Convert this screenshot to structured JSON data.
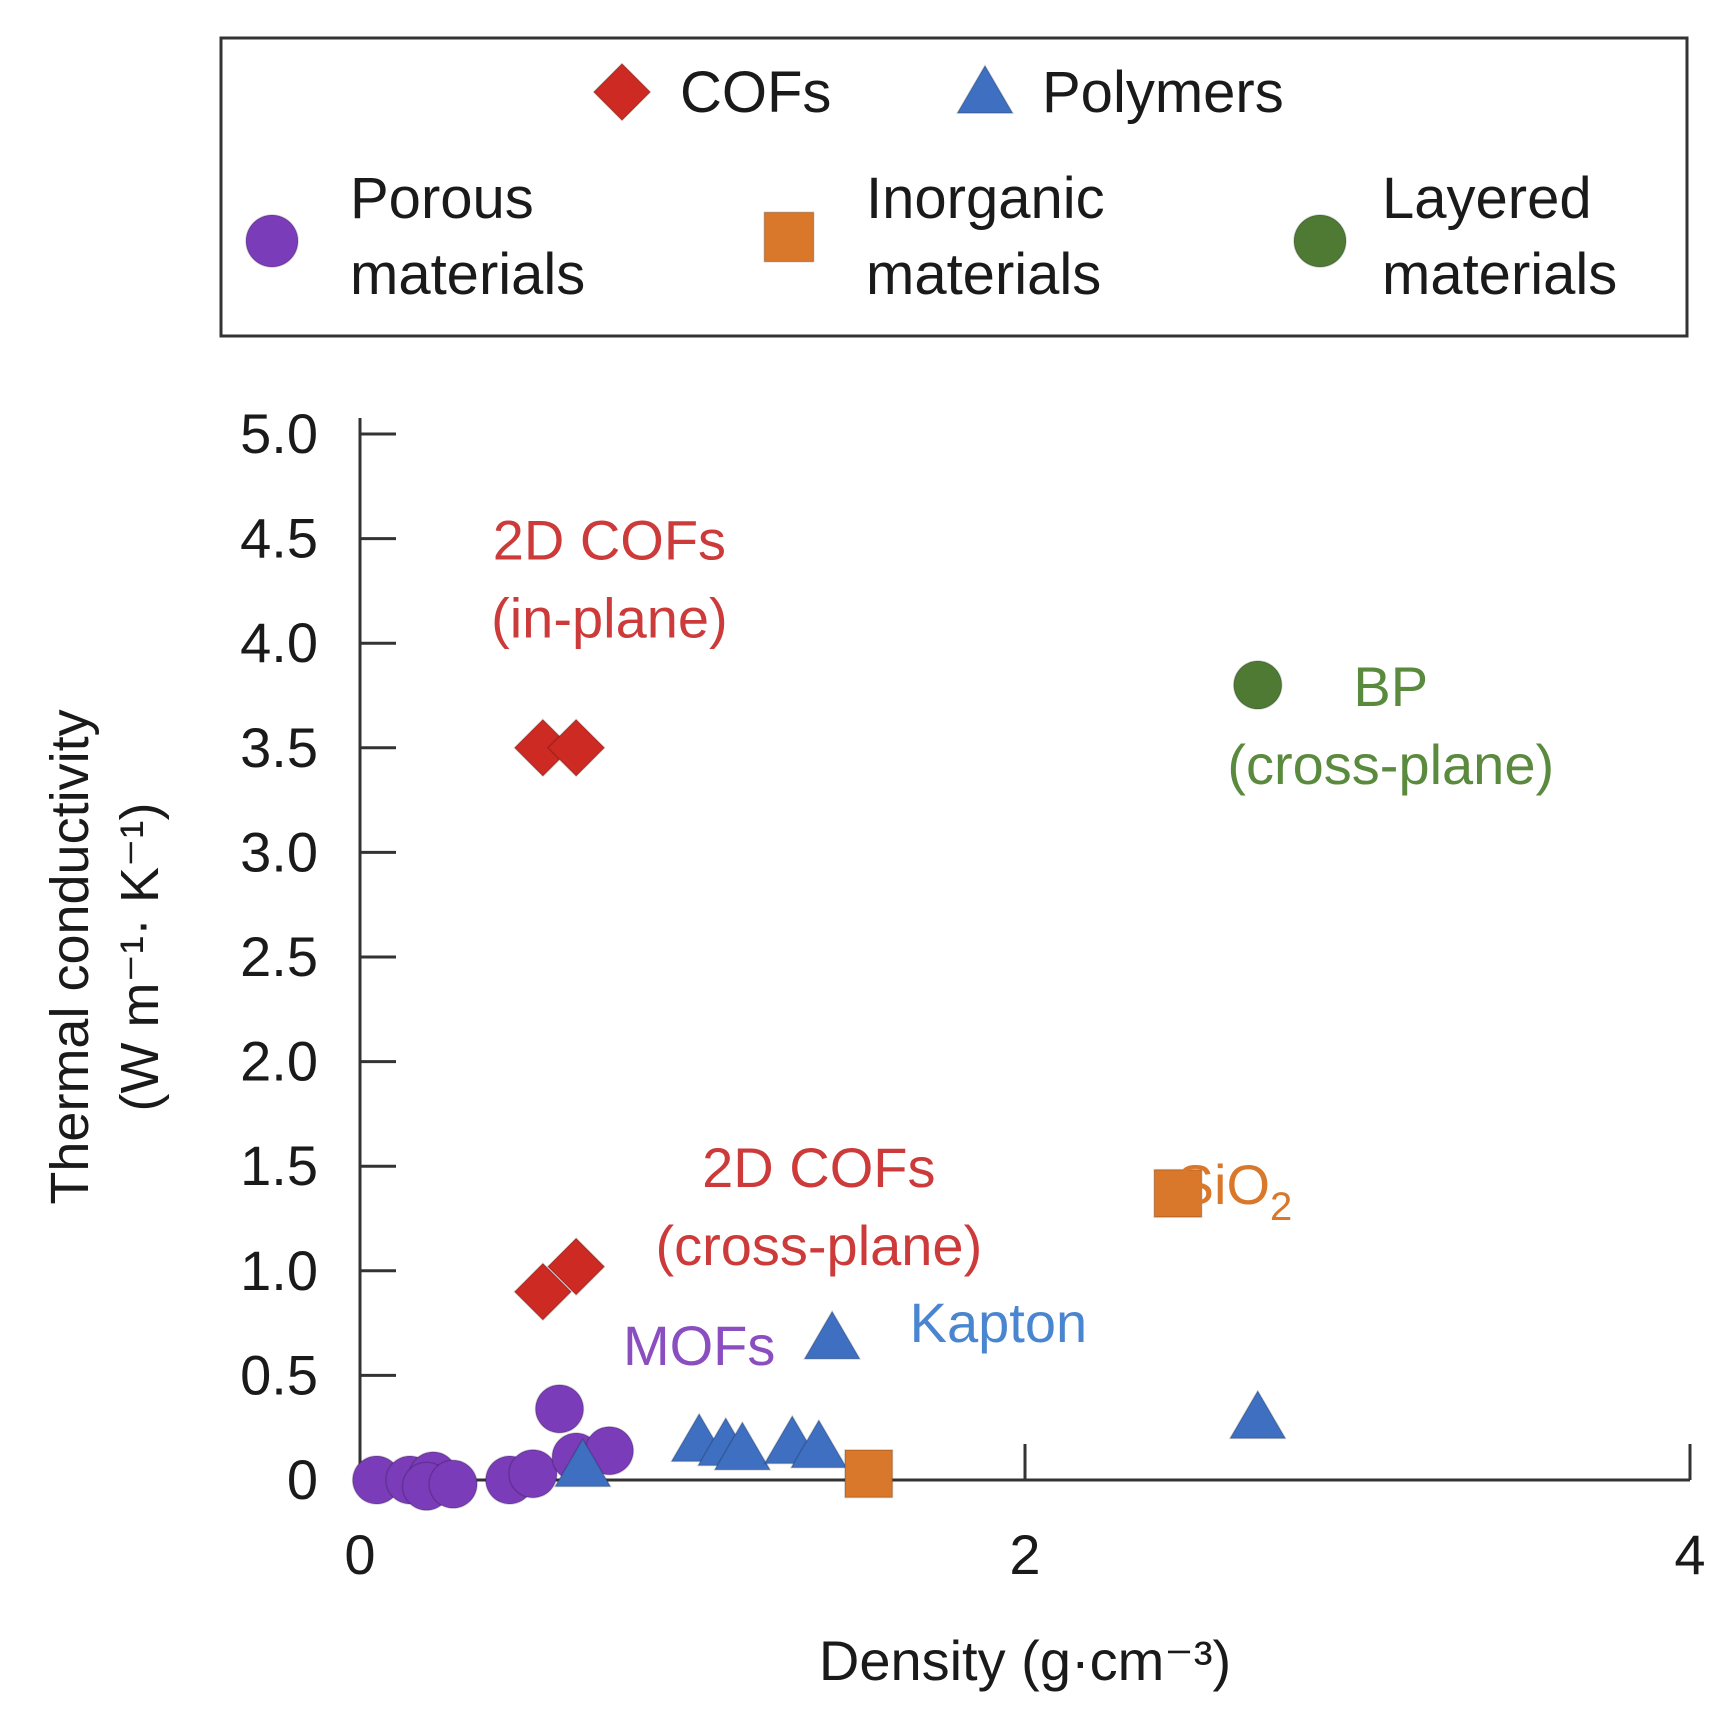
{
  "chart_data": {
    "type": "scatter",
    "xlabel": "Density (g·cm⁻³)",
    "ylabel_line1": "Thermal conductivity",
    "ylabel_line2": "(W m⁻¹· K⁻¹)",
    "xlim": [
      0,
      4
    ],
    "ylim": [
      0,
      5
    ],
    "x_ticks": [
      {
        "value": 0,
        "label": "0"
      },
      {
        "value": 2,
        "label": "2"
      },
      {
        "value": 4,
        "label": "4"
      }
    ],
    "y_ticks": [
      {
        "value": 0,
        "label": "0"
      },
      {
        "value": 0.5,
        "label": "0.5"
      },
      {
        "value": 1.0,
        "label": "1.0"
      },
      {
        "value": 1.5,
        "label": "1.5"
      },
      {
        "value": 2.0,
        "label": "2.0"
      },
      {
        "value": 2.5,
        "label": "2.5"
      },
      {
        "value": 3.0,
        "label": "3.0"
      },
      {
        "value": 3.5,
        "label": "3.5"
      },
      {
        "value": 4.0,
        "label": "4.0"
      },
      {
        "value": 4.5,
        "label": "4.5"
      },
      {
        "value": 5.0,
        "label": "5.0"
      }
    ],
    "legend": {
      "placement": "top",
      "entries": [
        {
          "series": "cofs",
          "lines": [
            "COFs"
          ]
        },
        {
          "series": "polymers",
          "lines": [
            "Polymers"
          ]
        },
        {
          "series": "porous",
          "lines": [
            "Porous",
            "materials"
          ]
        },
        {
          "series": "inorganic",
          "lines": [
            "Inorganic",
            "materials"
          ]
        },
        {
          "series": "layered",
          "lines": [
            "Layered",
            "materials"
          ]
        }
      ]
    },
    "series": [
      {
        "id": "cofs",
        "name": "COFs",
        "marker": "diamond",
        "color": "#cc2a22",
        "points": [
          {
            "x": 0.55,
            "y": 3.5
          },
          {
            "x": 0.65,
            "y": 3.5
          },
          {
            "x": 0.55,
            "y": 0.9
          },
          {
            "x": 0.65,
            "y": 1.02
          }
        ]
      },
      {
        "id": "polymers",
        "name": "Polymers",
        "marker": "triangle",
        "color": "#3f6fc0",
        "points": [
          {
            "x": 0.67,
            "y": 0.07
          },
          {
            "x": 1.02,
            "y": 0.19
          },
          {
            "x": 1.1,
            "y": 0.17
          },
          {
            "x": 1.15,
            "y": 0.15
          },
          {
            "x": 1.3,
            "y": 0.18
          },
          {
            "x": 1.38,
            "y": 0.16
          },
          {
            "x": 1.42,
            "y": 0.68
          },
          {
            "x": 2.7,
            "y": 0.3
          }
        ]
      },
      {
        "id": "porous",
        "name": "Porous materials",
        "marker": "circle",
        "color": "#7a3cb8",
        "points": [
          {
            "x": 0.05,
            "y": 0.0
          },
          {
            "x": 0.15,
            "y": 0.0
          },
          {
            "x": 0.22,
            "y": 0.02
          },
          {
            "x": 0.2,
            "y": -0.03
          },
          {
            "x": 0.28,
            "y": -0.02
          },
          {
            "x": 0.45,
            "y": 0.0
          },
          {
            "x": 0.52,
            "y": 0.03
          },
          {
            "x": 0.6,
            "y": 0.34
          },
          {
            "x": 0.65,
            "y": 0.11
          },
          {
            "x": 0.75,
            "y": 0.14
          }
        ]
      },
      {
        "id": "inorganic",
        "name": "Inorganic materials",
        "marker": "square",
        "color": "#d9772a",
        "points": [
          {
            "x": 1.53,
            "y": 0.03
          },
          {
            "x": 2.46,
            "y": 1.37
          }
        ]
      },
      {
        "id": "layered",
        "name": "Layered materials",
        "marker": "circle",
        "color": "#4e7a34",
        "points": [
          {
            "x": 2.7,
            "y": 3.8
          }
        ]
      }
    ],
    "annotations": [
      {
        "id": "2d-cofs-in-plane",
        "lines": [
          "2D COFs",
          "(in-plane)"
        ],
        "color": "#cc3a3a",
        "x": 0.75,
        "y": 4.4
      },
      {
        "id": "bp-cross-plane",
        "lines": [
          "BP",
          "(cross-plane)"
        ],
        "color": "#5a8a3e",
        "x": 3.1,
        "y": 3.7
      },
      {
        "id": "2d-cofs-cross-plane",
        "lines": [
          "2D COFs",
          "(cross-plane)"
        ],
        "color": "#cc3a3a",
        "x": 1.38,
        "y": 1.4
      },
      {
        "id": "sio2",
        "text": "SiO",
        "sub": "2",
        "color": "#d9772a",
        "x": 2.63,
        "y": 1.32
      },
      {
        "id": "kapton",
        "lines": [
          "Kapton"
        ],
        "color": "#4a86d0",
        "x": 1.92,
        "y": 0.66
      },
      {
        "id": "mofs",
        "lines": [
          "MOFs"
        ],
        "color": "#8a4ec0",
        "x": 1.02,
        "y": 0.55
      }
    ]
  }
}
